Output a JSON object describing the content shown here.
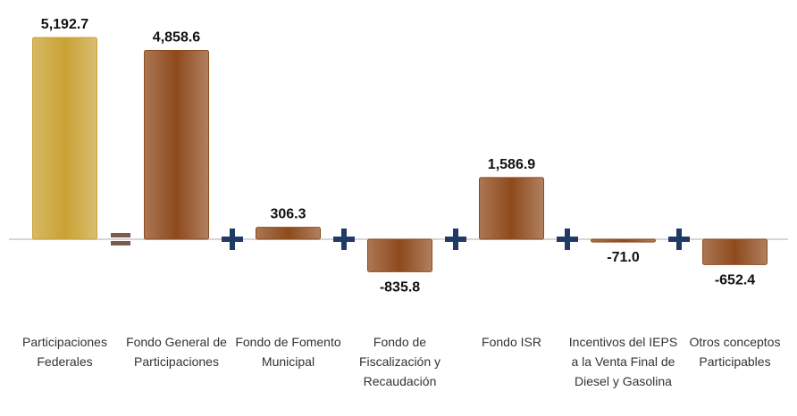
{
  "chart_data": {
    "type": "bar",
    "categories": [
      "Participaciones Federales",
      "Fondo General de Participaciones",
      "Fondo de Fomento Municipal",
      "Fondo de Fiscalización y Recaudación",
      "Fondo ISR",
      "Incentivos del IEPS a la Venta Final de Diesel y Gasolina",
      "Otros conceptos Participables"
    ],
    "values": [
      5192.7,
      4858.6,
      306.3,
      -835.8,
      1586.9,
      -71.0,
      -652.4
    ],
    "value_labels": [
      "5,192.7",
      "4,858.6",
      "306.3",
      "-835.8",
      "1,586.9",
      "-71.0",
      "-652.4"
    ],
    "colors": [
      "#c9a234",
      "#8e4a1c",
      "#8e4a1c",
      "#8e4a1c",
      "#8e4a1c",
      "#8e4a1c",
      "#8e4a1c"
    ],
    "ylim": [
      -1000,
      5500
    ]
  }
}
